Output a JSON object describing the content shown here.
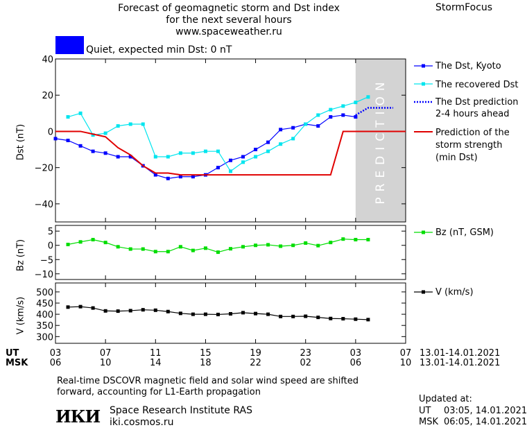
{
  "header": {
    "title_line1": "Forecast of geomagnetic storm and Dst index",
    "title_line2": "for the next several hours",
    "url": "www.spaceweather.ru",
    "brand": "StormFocus"
  },
  "status": {
    "color": "#0000ff",
    "label": "Quiet, expected min Dst: 0 nT"
  },
  "colors": {
    "dst": "#0000ff",
    "recovered": "#00e5ee",
    "prediction_dst": "#0000ff",
    "storm_strength": "#e00000",
    "bz": "#00dd00",
    "v": "#000000",
    "prediction_band": "#d3d3d3",
    "prediction_text": "#ffffff"
  },
  "chart_data": [
    {
      "type": "line",
      "id": "dst",
      "ylabel": "Dst (nT)",
      "ylim": [
        -50,
        40
      ],
      "yticks": [
        40,
        20,
        0,
        -20,
        -40
      ],
      "xlim": [
        3,
        31
      ],
      "prediction_band": [
        27,
        31
      ],
      "prediction_text": "PREDICTION",
      "series": [
        {
          "name": "The Dst, Kyoto",
          "style": "line-square",
          "x": [
            3,
            4,
            5,
            6,
            7,
            8,
            9,
            10,
            11,
            12,
            13,
            14,
            15,
            16,
            17,
            18,
            19,
            20,
            21,
            22,
            23,
            24,
            25,
            26,
            27
          ],
          "y": [
            -4,
            -5,
            -8,
            -11,
            -12,
            -14,
            -14,
            -19,
            -24,
            -26,
            -25,
            -25,
            -24,
            -20,
            -16,
            -14,
            -10,
            -6,
            1,
            2,
            4,
            3,
            8,
            9,
            8
          ]
        },
        {
          "name": "The recovered Dst",
          "style": "line-square",
          "x": [
            4,
            5,
            6,
            7,
            8,
            9,
            10,
            11,
            12,
            13,
            14,
            15,
            16,
            17,
            18,
            19,
            20,
            21,
            22,
            23,
            24,
            25,
            26,
            27,
            28
          ],
          "y": [
            8,
            10,
            -2,
            -1,
            3,
            4,
            4,
            -14,
            -14,
            -12,
            -12,
            -11,
            -11,
            -22,
            -17,
            -14,
            -11,
            -7,
            -4,
            4,
            9,
            12,
            14,
            16,
            19
          ]
        },
        {
          "name": "The Dst prediction 2-4 hours ahead",
          "style": "dotted",
          "x": [
            27,
            28,
            29,
            30
          ],
          "y": [
            9,
            13,
            13,
            13
          ]
        },
        {
          "name": "Prediction of the storm strength (min Dst)",
          "style": "line",
          "x": [
            3,
            5,
            7,
            8,
            9,
            10,
            11,
            12,
            13,
            14,
            15,
            16,
            17,
            18,
            19,
            20,
            21,
            22,
            23,
            24,
            25,
            26,
            27,
            31
          ],
          "y": [
            0,
            0,
            -3,
            -9,
            -13,
            -19,
            -23,
            -23,
            -24,
            -24,
            -24,
            -24,
            -24,
            -24,
            -24,
            -24,
            -24,
            -24,
            -24,
            -24,
            -24,
            0,
            0,
            0
          ]
        }
      ]
    },
    {
      "type": "line",
      "id": "bz",
      "ylabel": "Bz (nT)",
      "ylim": [
        -12,
        7
      ],
      "yticks": [
        5,
        0,
        -5,
        -10
      ],
      "xlim": [
        3,
        31
      ],
      "series": [
        {
          "name": "Bz (nT, GSM)",
          "style": "line-square",
          "x": [
            4,
            5,
            6,
            7,
            8,
            9,
            10,
            11,
            12,
            13,
            14,
            15,
            16,
            17,
            18,
            19,
            20,
            21,
            22,
            23,
            24,
            25,
            26,
            27,
            28
          ],
          "y": [
            0.3,
            1.2,
            2,
            1,
            -0.5,
            -1.3,
            -1.3,
            -2.2,
            -2.2,
            -0.5,
            -1.8,
            -1,
            -2.4,
            -1.2,
            -0.5,
            0,
            0.2,
            -0.3,
            0,
            0.8,
            -0.1,
            1,
            2.2,
            2,
            2
          ]
        }
      ]
    },
    {
      "type": "line",
      "id": "v",
      "ylabel": "V (km/s)",
      "ylim": [
        270,
        540
      ],
      "yticks": [
        500,
        450,
        400,
        350,
        300
      ],
      "xlim": [
        3,
        31
      ],
      "series": [
        {
          "name": "V (km/s)",
          "style": "line-square",
          "x": [
            4,
            5,
            6,
            7,
            8,
            9,
            10,
            11,
            12,
            13,
            14,
            15,
            16,
            17,
            18,
            19,
            20,
            21,
            22,
            23,
            24,
            25,
            26,
            27,
            28
          ],
          "y": [
            432,
            434,
            428,
            415,
            414,
            416,
            420,
            418,
            412,
            404,
            400,
            400,
            399,
            402,
            407,
            403,
            400,
            390,
            390,
            391,
            386,
            381,
            380,
            378,
            376
          ]
        }
      ]
    }
  ],
  "xaxis": {
    "ut_label": "UT",
    "msk_label": "MSK",
    "ut_ticks": [
      "03",
      "07",
      "11",
      "15",
      "19",
      "23",
      "03",
      "07"
    ],
    "msk_ticks": [
      "06",
      "10",
      "14",
      "18",
      "22",
      "02",
      "06",
      "10"
    ],
    "tick_positions": [
      3,
      7,
      11,
      15,
      19,
      23,
      27,
      31
    ],
    "date_range_ut": "13.01-14.01.2021",
    "date_range_msk": "13.01-14.01.2021"
  },
  "legend": {
    "dst": "The Dst, Kyoto",
    "recovered": "The recovered Dst",
    "prediction_line1": "The Dst prediction",
    "prediction_line2": "2-4 hours ahead",
    "strength_line1": "Prediction of the",
    "strength_line2": "storm strength",
    "strength_line3": "(min Dst)",
    "bz": "Bz (nT, GSM)",
    "v": "V (km/s)"
  },
  "footer": {
    "note_line1": "Real-time DSCOVR magnetic field and solar wind speed are shifted",
    "note_line2": "forward, accounting for L1-Earth propagation",
    "logo": "ИКИ",
    "institute": "Space Research Institute RAS",
    "site": "iki.cosmos.ru",
    "updated_label": "Updated at:",
    "updated_ut_label": "UT",
    "updated_ut": "03:05, 14.01.2021",
    "updated_msk_label": "MSK",
    "updated_msk": "06:05, 14.01.2021"
  }
}
